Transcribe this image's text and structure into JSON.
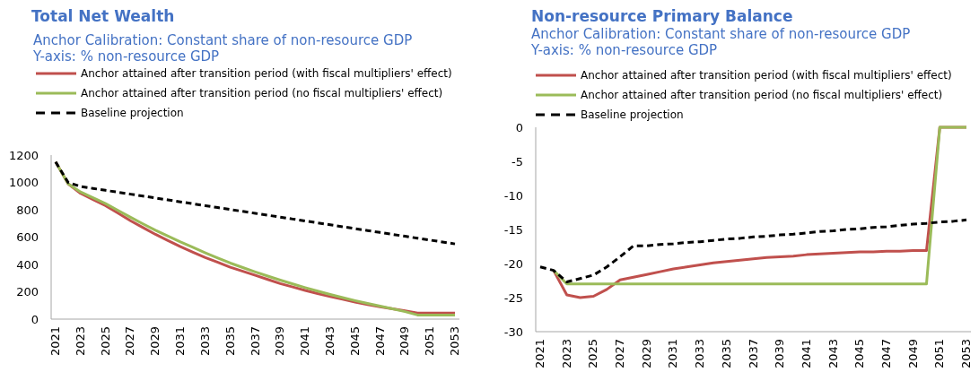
{
  "chart_data": [
    {
      "type": "line",
      "title": "Total Net Wealth",
      "subtitle": "Anchor Calibration: Constant share of non-resource GDP\nY-axis: % non-resource GDP",
      "categories": [
        "2021",
        null,
        "2023",
        null,
        "2025",
        null,
        "2027",
        null,
        "2029",
        null,
        "2031",
        null,
        "2033",
        null,
        "2035",
        null,
        "2037",
        null,
        "2039",
        null,
        "2041",
        null,
        "2043",
        null,
        "2045",
        null,
        "2047",
        null,
        "2049",
        null,
        "2051",
        null,
        "2053"
      ],
      "ylim": [
        0,
        1200
      ],
      "yticks": [
        0,
        200,
        400,
        600,
        800,
        1000,
        1200
      ],
      "legend": "top",
      "grid": false,
      "series": [
        {
          "name": "Anchor attained after transition period (with fiscal multipliers' effect)",
          "color": "#c0504d",
          "line_style": "solid",
          "values": [
            1150,
            990,
            920,
            875,
            830,
            775,
            720,
            670,
            620,
            575,
            530,
            490,
            450,
            415,
            380,
            350,
            320,
            290,
            260,
            235,
            210,
            187,
            165,
            145,
            125,
            107,
            90,
            75,
            60,
            45,
            45,
            45,
            45
          ]
        },
        {
          "name": "Anchor attained after transition period (no fiscal multipliers' effect)",
          "color": "#9bbb59",
          "line_style": "solid",
          "values": [
            1150,
            990,
            930,
            888,
            845,
            795,
            745,
            697,
            650,
            607,
            565,
            525,
            485,
            447,
            410,
            377,
            345,
            315,
            285,
            257,
            230,
            205,
            180,
            157,
            135,
            115,
            95,
            75,
            55,
            30,
            30,
            30,
            30
          ]
        },
        {
          "name": "Baseline projection",
          "color": "#000000",
          "line_style": "dashed",
          "values": [
            1150,
            1000,
            970,
            956,
            942,
            928,
            914,
            900,
            886,
            872,
            858,
            844,
            830,
            816,
            802,
            788,
            774,
            760,
            746,
            732,
            718,
            704,
            690,
            676,
            662,
            648,
            634,
            620,
            606,
            592,
            578,
            564,
            550
          ]
        }
      ]
    },
    {
      "type": "line",
      "title": "Non-resource Primary Balance",
      "subtitle": "Anchor Calibration: Constant share of non-resource GDP\nY-axis: % non-resource GDP",
      "categories": [
        "2021",
        null,
        "2023",
        null,
        "2025",
        null,
        "2027",
        null,
        "2029",
        null,
        "2031",
        null,
        "2033",
        null,
        "2035",
        null,
        "2037",
        null,
        "2039",
        null,
        "2041",
        null,
        "2043",
        null,
        "2045",
        null,
        "2047",
        null,
        "2049",
        null,
        "2051",
        null,
        "2053"
      ],
      "ylim": [
        -30,
        0
      ],
      "yticks": [
        -30,
        -25,
        -20,
        -15,
        -10,
        -5,
        0
      ],
      "legend": "top",
      "grid": false,
      "series": [
        {
          "name": "Anchor attained after transition period (with fiscal multipliers' effect)",
          "color": "#c0504d",
          "line_style": "solid",
          "values": [
            null,
            -21,
            -24.6,
            -25,
            -24.8,
            -23.8,
            -22.4,
            -22,
            -21.6,
            -21.2,
            -20.8,
            -20.5,
            -20.2,
            -19.9,
            -19.7,
            -19.5,
            -19.3,
            -19.1,
            -19,
            -18.9,
            -18.7,
            -18.6,
            -18.5,
            -18.4,
            -18.3,
            -18.3,
            -18.2,
            -18.2,
            -18.1,
            -18.1,
            0,
            0,
            0
          ]
        },
        {
          "name": "Anchor attained after transition period (no fiscal multipliers' effect)",
          "color": "#9bbb59",
          "line_style": "solid",
          "values": [
            null,
            -21,
            -23,
            -23,
            -23,
            -23,
            -23,
            -23,
            -23,
            -23,
            -23,
            -23,
            -23,
            -23,
            -23,
            -23,
            -23,
            -23,
            -23,
            -23,
            -23,
            -23,
            -23,
            -23,
            -23,
            -23,
            -23,
            -23,
            -23,
            -23,
            0,
            0,
            0
          ]
        },
        {
          "name": "Baseline projection",
          "color": "#000000",
          "line_style": "dashed",
          "values": [
            -20.5,
            -21,
            -22.7,
            -22.2,
            -21.7,
            -20.5,
            -19,
            -17.4,
            -17.4,
            -17.2,
            -17.1,
            -16.9,
            -16.8,
            -16.6,
            -16.4,
            -16.3,
            -16.1,
            -16,
            -15.8,
            -15.7,
            -15.5,
            -15.3,
            -15.2,
            -15,
            -14.9,
            -14.7,
            -14.6,
            -14.4,
            -14.2,
            -14.1,
            -13.9,
            -13.8,
            -13.6
          ]
        }
      ]
    }
  ]
}
